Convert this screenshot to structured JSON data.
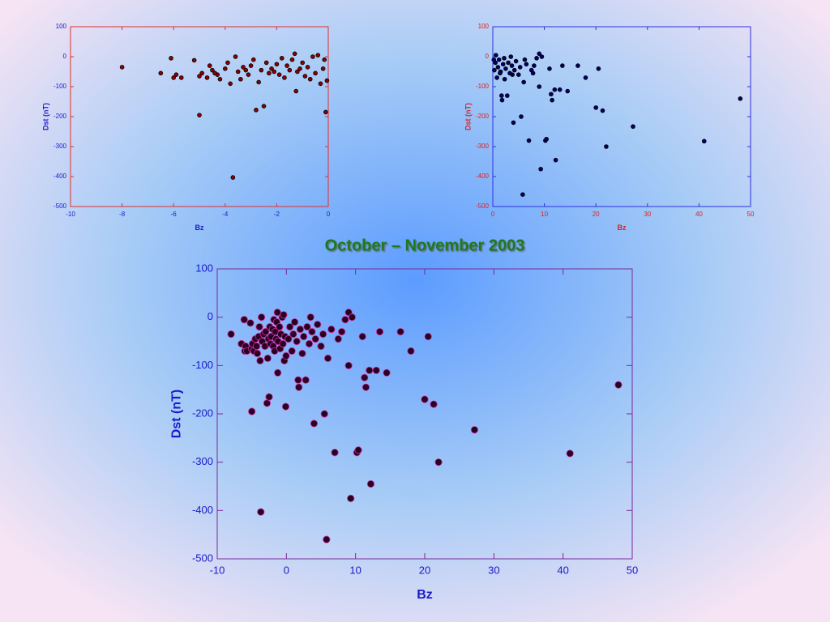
{
  "chart_data": [
    {
      "type": "scatter",
      "xlabel": "Bz",
      "ylabel": "Dst (nT)",
      "xlim": [
        -10,
        0
      ],
      "ylim": [
        -500,
        100
      ],
      "xticks": [
        -10,
        -8,
        -6,
        -4,
        -2,
        0
      ],
      "yticks": [
        -500,
        -400,
        -300,
        -200,
        -100,
        0,
        100
      ],
      "color": "#8b0000",
      "edge_color": "#000000",
      "axis_color": "#e03030",
      "label_color": "#1a1acc",
      "x": [
        -8,
        -6.5,
        -6.1,
        -6.0,
        -5.9,
        -5.7,
        -5.2,
        -5.0,
        -5.0,
        -4.9,
        -4.7,
        -4.5,
        -4.3,
        -4.2,
        -4.0,
        -3.9,
        -3.8,
        -3.7,
        -3.6,
        -3.5,
        -3.3,
        -3.1,
        -3.0,
        -2.8,
        -2.7,
        -2.6,
        -2.5,
        -2.4,
        -2.3,
        -2.2,
        -2.0,
        -1.9,
        -1.8,
        -1.7,
        -1.6,
        -1.5,
        -1.4,
        -1.3,
        -1.25,
        -1.2,
        -1.0,
        -0.9,
        -0.8,
        -0.6,
        -0.5,
        -0.4,
        -0.3,
        -0.2,
        -0.1,
        -0.05,
        -0.15,
        -2.9,
        -3.4,
        -4.6,
        -1.1,
        -0.7,
        -2.1,
        -3.2,
        -4.4
      ],
      "y": [
        -35,
        -55,
        -5,
        -70,
        -60,
        -70,
        -12,
        -195,
        -65,
        -55,
        -70,
        -45,
        -60,
        -75,
        -40,
        -20,
        -90,
        -403,
        0,
        -50,
        -35,
        -60,
        -30,
        -178,
        -85,
        -45,
        -165,
        -20,
        -55,
        -40,
        -25,
        -60,
        -5,
        -70,
        -30,
        -45,
        -10,
        10,
        -115,
        -50,
        -20,
        -65,
        -35,
        0,
        -55,
        5,
        -90,
        -40,
        -185,
        -80,
        -10,
        -10,
        -75,
        -30,
        -40,
        -75,
        -50,
        -45,
        -55
      ]
    },
    {
      "type": "scatter",
      "xlabel": "Bz",
      "ylabel": "Dst (nT)",
      "xlim": [
        0,
        50
      ],
      "ylim": [
        -500,
        100
      ],
      "xticks": [
        0,
        10,
        20,
        30,
        40,
        50
      ],
      "yticks": [
        -500,
        -400,
        -300,
        -200,
        -100,
        0,
        100
      ],
      "color": "#000066",
      "edge_color": "#000000",
      "axis_color": "#3030e0",
      "label_color": "#e02020",
      "x": [
        0.3,
        0.5,
        0.8,
        1,
        1.2,
        1.5,
        1.7,
        1.8,
        2,
        2.3,
        2.5,
        2.8,
        3,
        3.3,
        3.5,
        3.7,
        4,
        4.2,
        4.5,
        5,
        5.3,
        5.5,
        5.8,
        6,
        6.5,
        7,
        7.5,
        8,
        8.5,
        9,
        9,
        9.3,
        9.5,
        10.2,
        10.4,
        11,
        11.3,
        11.5,
        12,
        12.2,
        13,
        13.5,
        14.5,
        16.5,
        18,
        20,
        20.5,
        21.3,
        22,
        27.2,
        41,
        48,
        0.2,
        0.6,
        1.4,
        2.2,
        3.8,
        6.2,
        7.8
      ],
      "y": [
        -45,
        -20,
        -70,
        -35,
        -10,
        -50,
        -130,
        -145,
        -25,
        -75,
        -40,
        -130,
        -20,
        -55,
        0,
        -30,
        -220,
        -45,
        -15,
        -60,
        -35,
        -200,
        -460,
        -85,
        -25,
        -280,
        -45,
        -30,
        -5,
        10,
        -100,
        -375,
        0,
        -280,
        -275,
        -40,
        -125,
        -145,
        -110,
        -345,
        -110,
        -30,
        -115,
        -30,
        -70,
        -170,
        -40,
        -180,
        -300,
        -233,
        -282,
        -140,
        -10,
        5,
        -55,
        -5,
        -60,
        -10,
        -55
      ]
    },
    {
      "type": "scatter",
      "title": "October – November 2003",
      "xlabel": "Bz",
      "ylabel": "Dst (nT)",
      "xlim": [
        -10,
        50
      ],
      "ylim": [
        -500,
        100
      ],
      "xticks": [
        -10,
        0,
        10,
        20,
        30,
        40,
        50
      ],
      "yticks": [
        -500,
        -400,
        -300,
        -200,
        -100,
        0,
        100
      ],
      "color": "#2a0020",
      "edge_color": "#cc33aa",
      "axis_color": "#7a2a9a",
      "label_color": "#1a1acc",
      "x": [
        -8,
        -6.5,
        -6.1,
        -6.0,
        -5.9,
        -5.7,
        -5.2,
        -5.0,
        -5.0,
        -4.9,
        -4.7,
        -4.5,
        -4.3,
        -4.2,
        -4.0,
        -3.9,
        -3.8,
        -3.7,
        -3.6,
        -3.5,
        -3.3,
        -3.1,
        -3.0,
        -2.8,
        -2.7,
        -2.6,
        -2.5,
        -2.4,
        -2.3,
        -2.2,
        -2.0,
        -1.9,
        -1.8,
        -1.7,
        -1.6,
        -1.5,
        -1.4,
        -1.3,
        -1.25,
        -1.2,
        -1.0,
        -0.9,
        -0.8,
        -0.6,
        -0.5,
        -0.4,
        -0.3,
        -0.2,
        -0.1,
        -0.05,
        0.3,
        0.5,
        0.8,
        1,
        1.2,
        1.5,
        1.7,
        1.8,
        2,
        2.3,
        2.5,
        2.8,
        3,
        3.3,
        3.5,
        3.7,
        4,
        4.2,
        4.5,
        5,
        5.3,
        5.5,
        5.8,
        6,
        6.5,
        7,
        7.5,
        8,
        8.5,
        9,
        9,
        9.3,
        9.5,
        10.2,
        10.4,
        11,
        11.3,
        11.5,
        12,
        12.2,
        13,
        13.5,
        14.5,
        16.5,
        18,
        20,
        20.5,
        21.3,
        22,
        27.2,
        41,
        48
      ],
      "y": [
        -35,
        -55,
        -5,
        -70,
        -60,
        -70,
        -12,
        -195,
        -65,
        -55,
        -70,
        -45,
        -60,
        -75,
        -40,
        -20,
        -90,
        -403,
        0,
        -50,
        -35,
        -60,
        -30,
        -178,
        -85,
        -45,
        -165,
        -20,
        -55,
        -40,
        -25,
        -60,
        -5,
        -70,
        -30,
        -45,
        -10,
        10,
        -115,
        -50,
        -20,
        -65,
        -35,
        0,
        -55,
        5,
        -90,
        -40,
        -185,
        -80,
        -45,
        -20,
        -70,
        -35,
        -10,
        -50,
        -130,
        -145,
        -25,
        -75,
        -40,
        -130,
        -20,
        -55,
        0,
        -30,
        -220,
        -45,
        -15,
        -60,
        -35,
        -200,
        -460,
        -85,
        -25,
        -280,
        -45,
        -30,
        -5,
        10,
        -100,
        -375,
        0,
        -280,
        -275,
        -40,
        -125,
        -145,
        -110,
        -345,
        -110,
        -30,
        -115,
        -30,
        -70,
        -170,
        -40,
        -180,
        -300,
        -233,
        -282,
        -140
      ]
    }
  ]
}
